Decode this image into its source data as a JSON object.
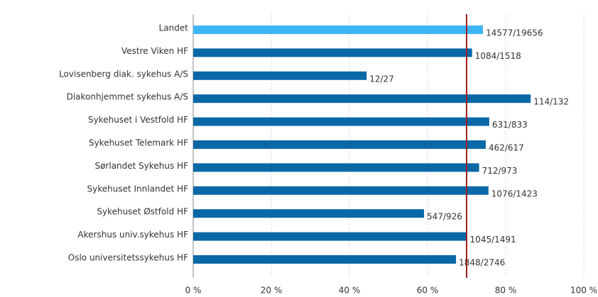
{
  "chart_data": {
    "type": "barh",
    "categories": [
      "Landet",
      "Vestre Viken HF",
      "Lovisenberg diak. sykehus A/S",
      "Diakonhjemmet sykehus A/S",
      "Sykehuset i Vestfold HF",
      "Sykehuset Telemark HF",
      "Sørlandet Sykehus HF",
      "Sykehuset Innlandet HF",
      "Sykehuset Østfold HF",
      "Akershus univ.sykehus HF",
      "Oslo universitetssykehus HF"
    ],
    "values": [
      74.2,
      71.4,
      44.4,
      86.4,
      75.8,
      74.9,
      73.2,
      75.6,
      59.1,
      70.1,
      67.3
    ],
    "value_labels": [
      "14577/19656",
      "1084/1518",
      "12/27",
      "114/132",
      "631/833",
      "462/617",
      "712/973",
      "1076/1423",
      "547/926",
      "1045/1491",
      "1848/2746"
    ],
    "colors": [
      "#3db5f2",
      "#0b68a6",
      "#0b68a6",
      "#0b68a6",
      "#0b68a6",
      "#0b68a6",
      "#0b68a6",
      "#0b68a6",
      "#0b68a6",
      "#0b68a6",
      "#0b68a6"
    ],
    "xlim": [
      0,
      100
    ],
    "xticks": [
      {
        "value": 0,
        "label": "0 %"
      },
      {
        "value": 20,
        "label": "20 %"
      },
      {
        "value": 40,
        "label": "40 %"
      },
      {
        "value": 60,
        "label": "60 %"
      },
      {
        "value": 80,
        "label": "80 %"
      },
      {
        "value": 100,
        "label": "100 %"
      }
    ],
    "grid": true,
    "target_line": 70,
    "target_color": "#a01c1c"
  }
}
